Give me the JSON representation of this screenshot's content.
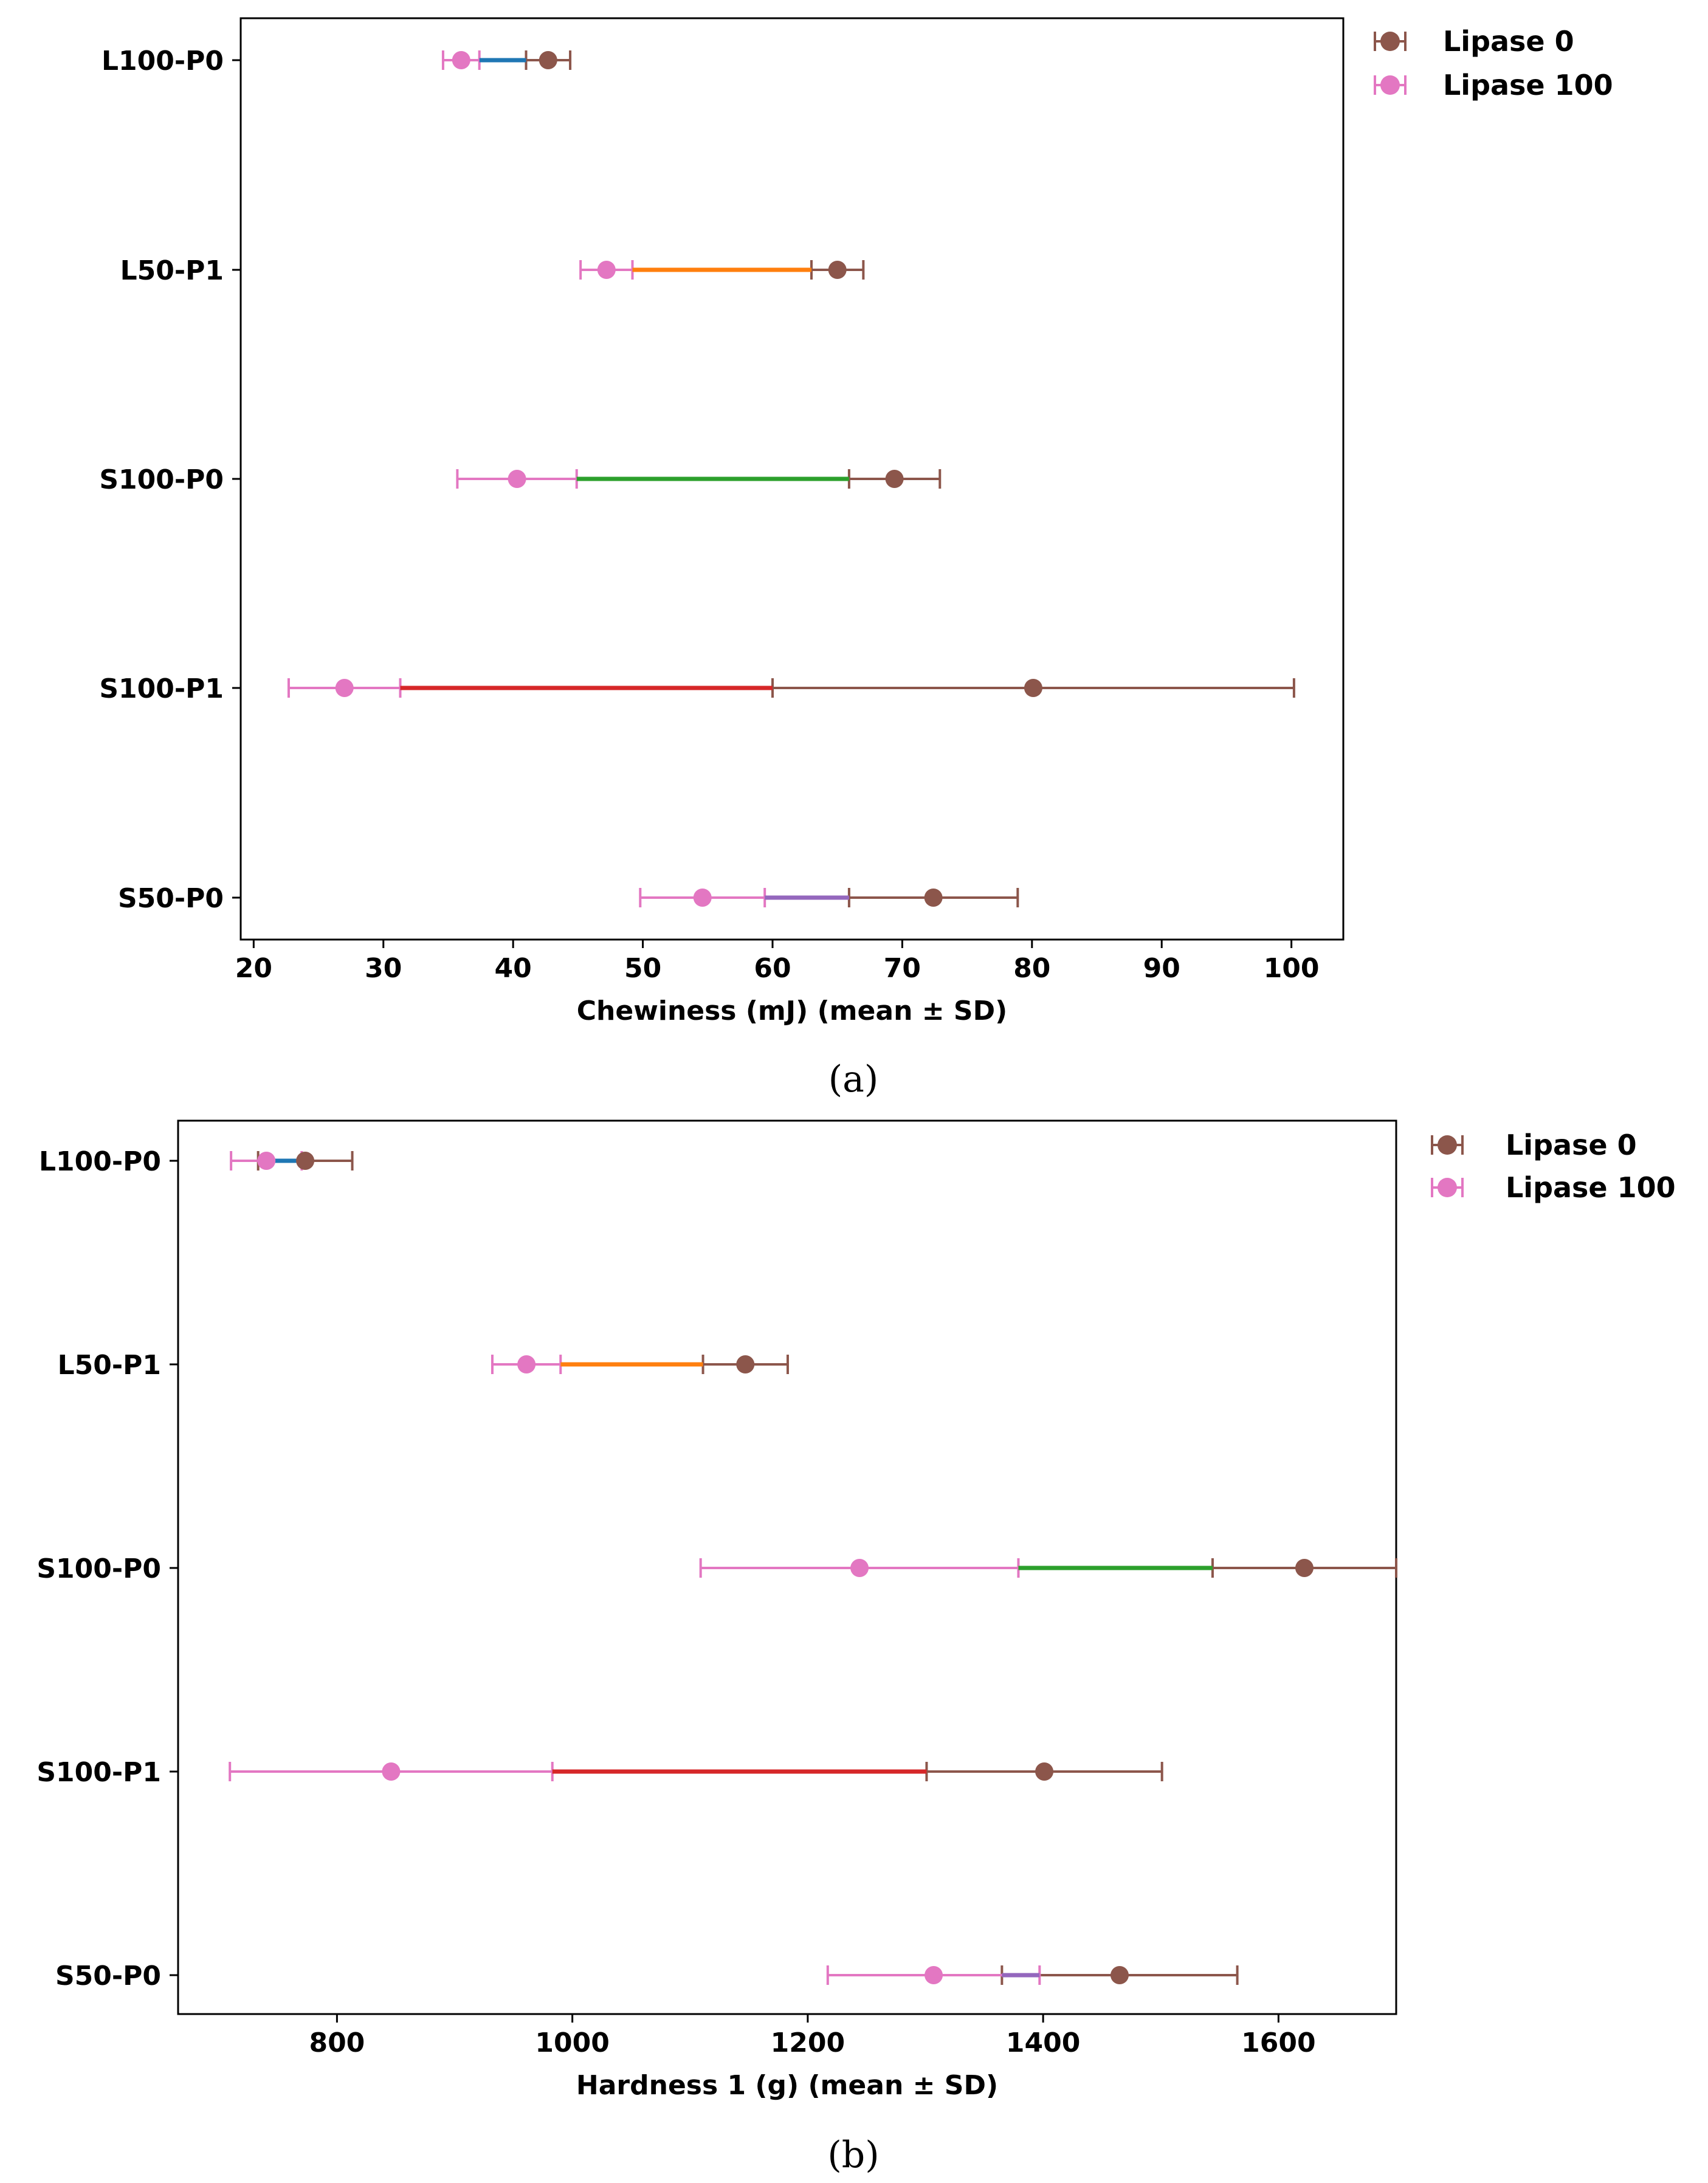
{
  "colors": {
    "lipase0": "#8c564b",
    "lipase100": "#e377c2",
    "connectors": [
      "#1f77b4",
      "#ff7f0e",
      "#2ca02c",
      "#d62728",
      "#9467bd"
    ]
  },
  "chart_data": [
    {
      "type": "dumbbell",
      "caption": "(a)",
      "title": "",
      "xlabel": "Chewiness (mJ) (mean ± SD)",
      "ylabel": "",
      "xlim": [
        19,
        104
      ],
      "xticks": [
        20,
        30,
        40,
        50,
        60,
        70,
        80,
        90,
        100
      ],
      "grid": false,
      "legend_position": "outside-top-right",
      "categories": [
        "L100-P0",
        "L50-P1",
        "S100-P0",
        "S100-P1",
        "S50-P0"
      ],
      "series": [
        {
          "name": "Lipase 0",
          "mean": [
            42.7,
            65.0,
            69.4,
            80.1,
            72.4
          ],
          "sd": [
            1.7,
            2.0,
            3.5,
            20.1,
            6.5
          ]
        },
        {
          "name": "Lipase 100",
          "mean": [
            36.0,
            47.2,
            40.3,
            27.0,
            54.6
          ],
          "sd": [
            1.4,
            2.0,
            4.6,
            4.3,
            4.8
          ]
        }
      ]
    },
    {
      "type": "dumbbell",
      "caption": "(b)",
      "title": "",
      "xlabel": "Hardness 1 (g) (mean ± SD)",
      "ylabel": "",
      "xlim": [
        665,
        1700
      ],
      "xticks": [
        800,
        1000,
        1200,
        1400,
        1600
      ],
      "grid": false,
      "legend_position": "outside-top-right",
      "categories": [
        "L100-P0",
        "L50-P1",
        "S100-P0",
        "S100-P1",
        "S50-P0"
      ],
      "series": [
        {
          "name": "Lipase 0",
          "mean": [
            773,
            1147,
            1622,
            1401,
            1465
          ],
          "sd": [
            40,
            36,
            78,
            100,
            100
          ]
        },
        {
          "name": "Lipase 100",
          "mean": [
            740,
            961,
            1244,
            846,
            1307
          ],
          "sd": [
            30,
            29,
            135,
            137,
            90
          ]
        }
      ]
    }
  ]
}
